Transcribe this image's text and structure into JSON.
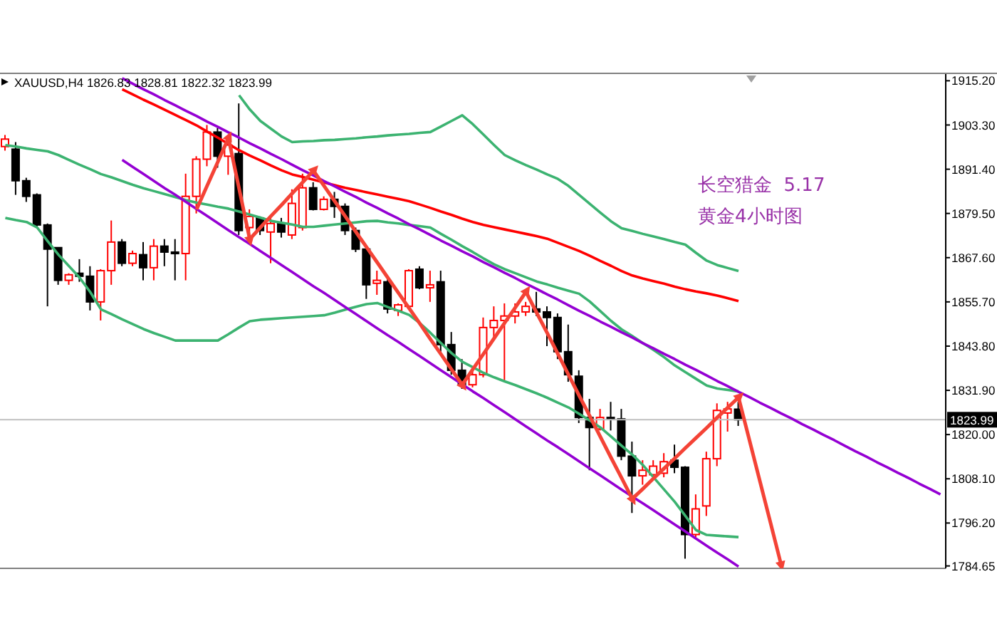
{
  "chart_data": {
    "type": "candlestick",
    "title": "XAUUSD,H4  1826.83 1828.81 1822.32 1823.99",
    "annotations": [
      "长空猎金  5.17",
      "黄金4小时图"
    ],
    "categories": [
      null,
      null,
      null,
      null,
      null,
      null,
      null,
      null,
      null,
      null,
      null,
      null,
      null,
      null,
      null,
      null,
      null,
      null,
      null,
      null,
      null,
      null,
      null,
      null,
      null,
      null,
      null,
      null,
      null,
      null,
      null,
      null,
      null,
      null,
      null,
      null,
      null,
      null,
      null,
      null,
      null,
      null,
      null,
      null,
      null,
      null,
      null,
      null,
      null,
      null,
      null,
      null,
      null,
      null,
      null,
      null,
      null,
      null,
      null,
      null,
      null,
      null,
      null,
      null,
      null,
      null,
      null,
      null,
      null,
      null,
      null,
      null,
      null,
      null,
      null,
      null,
      null,
      null,
      null,
      null,
      null,
      null,
      null,
      null,
      null,
      null,
      null,
      null,
      null
    ],
    "ohlc": [
      [
        1897.5,
        1900.6,
        1896.4,
        1899.5
      ],
      [
        1896.8,
        1898.7,
        1884.5,
        1888.3
      ],
      [
        1888.3,
        1889.1,
        1882.6,
        1884.1
      ],
      [
        1884.5,
        1884.9,
        1875.7,
        1876.4
      ],
      [
        1876.4,
        1876.8,
        1854.5,
        1869.9
      ],
      [
        1870.3,
        1870.3,
        1860.3,
        1861.5
      ],
      [
        1861.5,
        1863.4,
        1860.3,
        1863.0
      ],
      [
        1863.4,
        1867.2,
        1861.1,
        1862.6
      ],
      [
        1862.6,
        1865.3,
        1853.4,
        1855.7
      ],
      [
        1855.7,
        1864.5,
        1850.7,
        1864.1
      ],
      [
        1864.1,
        1877.6,
        1860.3,
        1871.8
      ],
      [
        1871.8,
        1872.6,
        1865.3,
        1866.1
      ],
      [
        1866.1,
        1869.5,
        1865.3,
        1868.7
      ],
      [
        1868.4,
        1871.8,
        1861.5,
        1864.9
      ],
      [
        1864.9,
        1872.6,
        1861.5,
        1870.7
      ],
      [
        1870.7,
        1872.6,
        1865.3,
        1869.1
      ],
      [
        1869.1,
        1872.6,
        1861.5,
        1868.7
      ],
      [
        1868.7,
        1890.2,
        1861.5,
        1884.1
      ],
      [
        1884.1,
        1894.9,
        1879.5,
        1894.1
      ],
      [
        1894.1,
        1903.3,
        1892.2,
        1901.4
      ],
      [
        1901.4,
        1902.5,
        1891.8,
        1894.9
      ],
      [
        1894.9,
        1899.8,
        1889.9,
        1897.9
      ],
      [
        1895.6,
        1909.1,
        1873.7,
        1874.9
      ],
      [
        1875.7,
        1880.6,
        1873.7,
        1878.7
      ],
      [
        1878.3,
        1878.7,
        1873.7,
        1874.9
      ],
      [
        1874.5,
        1878.3,
        1866.1,
        1876.8
      ],
      [
        1876.8,
        1878.3,
        1873.0,
        1874.5
      ],
      [
        1873.7,
        1886.0,
        1872.6,
        1882.2
      ],
      [
        1875.7,
        1890.2,
        1874.9,
        1886.4
      ],
      [
        1886.4,
        1887.9,
        1880.3,
        1880.6
      ],
      [
        1880.6,
        1884.1,
        1880.3,
        1883.3
      ],
      [
        1883.3,
        1885.3,
        1878.3,
        1881.4
      ],
      [
        1881.4,
        1882.2,
        1873.7,
        1874.9
      ],
      [
        1874.9,
        1875.7,
        1869.1,
        1869.9
      ],
      [
        1869.9,
        1870.7,
        1856.5,
        1860.3
      ],
      [
        1860.7,
        1864.1,
        1857.6,
        1861.5
      ],
      [
        1861.1,
        1861.8,
        1852.6,
        1853.8
      ],
      [
        1853.4,
        1855.3,
        1851.9,
        1854.9
      ],
      [
        1854.5,
        1864.5,
        1853.8,
        1864.1
      ],
      [
        1864.5,
        1865.3,
        1859.1,
        1859.5
      ],
      [
        1859.5,
        1864.1,
        1855.7,
        1860.3
      ],
      [
        1861.1,
        1864.1,
        1842.3,
        1844.2
      ],
      [
        1844.2,
        1847.6,
        1836.1,
        1837.3
      ],
      [
        1837.3,
        1840.3,
        1832.3,
        1833.4
      ],
      [
        1833.4,
        1837.3,
        1832.7,
        1836.1
      ],
      [
        1836.1,
        1851.5,
        1835.4,
        1848.8
      ],
      [
        1848.8,
        1854.5,
        1846.1,
        1850.7
      ],
      [
        1850.7,
        1855.3,
        1834.6,
        1851.9
      ],
      [
        1851.9,
        1855.3,
        1849.9,
        1853.0
      ],
      [
        1853.0,
        1855.7,
        1851.9,
        1854.5
      ],
      [
        1853.8,
        1858.4,
        1851.9,
        1853.0
      ],
      [
        1853.0,
        1854.5,
        1843.8,
        1851.5
      ],
      [
        1851.5,
        1852.6,
        1840.3,
        1842.3
      ],
      [
        1842.3,
        1849.6,
        1834.2,
        1836.1
      ],
      [
        1835.7,
        1837.3,
        1823.1,
        1824.6
      ],
      [
        1824.6,
        1829.6,
        1810.4,
        1821.9
      ],
      [
        1821.5,
        1826.9,
        1821.1,
        1824.6
      ],
      [
        1824.6,
        1828.8,
        1821.1,
        1824.2
      ],
      [
        1824.2,
        1826.9,
        1813.1,
        1814.2
      ],
      [
        1814.2,
        1818.1,
        1798.9,
        1808.9
      ],
      [
        1808.9,
        1813.1,
        1806.5,
        1810.4
      ],
      [
        1809.2,
        1813.1,
        1808.5,
        1811.5
      ],
      [
        1809.6,
        1815.0,
        1808.5,
        1812.7
      ],
      [
        1813.1,
        1817.3,
        1809.6,
        1811.2
      ],
      [
        1811.2,
        1811.5,
        1786.6,
        1793.1
      ],
      [
        1793.1,
        1803.9,
        1792.4,
        1800.0
      ],
      [
        1800.8,
        1815.4,
        1798.1,
        1813.5
      ],
      [
        1813.5,
        1828.4,
        1811.5,
        1826.5
      ],
      [
        1825.8,
        1828.8,
        1820.8,
        1826.9
      ],
      [
        1826.83,
        1828.81,
        1822.32,
        1823.99
      ],
      null,
      null,
      null,
      null,
      null,
      null,
      null,
      null,
      null,
      null,
      null,
      null,
      null,
      null,
      null,
      null,
      null,
      null,
      null
    ],
    "colors": [
      "#ff0000",
      "#000000",
      "#000000",
      "#000000",
      "#000000",
      "#000000",
      "#ff0000",
      "#000000",
      "#000000",
      "#ff0000",
      "#ff0000",
      "#000000",
      "#ff0000",
      "#000000",
      "#ff0000",
      "#000000",
      "#000000",
      "#ff0000",
      "#ff0000",
      "#ff0000",
      "#000000",
      "#ff0000",
      "#000000",
      "#ff0000",
      "#000000",
      "#ff0000",
      "#000000",
      "#ff0000",
      "#ff0000",
      "#000000",
      "#ff0000",
      "#000000",
      "#000000",
      "#000000",
      "#000000",
      "#ff0000",
      "#000000",
      "#ff0000",
      "#ff0000",
      "#000000",
      "#ff0000",
      "#000000",
      "#000000",
      "#000000",
      "#ff0000",
      "#ff0000",
      "#ff0000",
      "#ff0000",
      "#ff0000",
      "#ff0000",
      "#000000",
      "#000000",
      "#000000",
      "#000000",
      "#000000",
      "#000000",
      "#ff0000",
      "#000000",
      "#000000",
      "#000000",
      "#ff0000",
      "#ff0000",
      "#ff0000",
      "#000000",
      "#000000",
      "#ff0000",
      "#ff0000",
      "#ff0000",
      "#ff0000",
      "#000000",
      null,
      null,
      null,
      null,
      null,
      null,
      null,
      null,
      null,
      null,
      null,
      null,
      null,
      null,
      null,
      null,
      null,
      null,
      null
    ],
    "series": [
      {
        "type": "line",
        "color": "#ff0000",
        "values": [
          null,
          null,
          null,
          null,
          null,
          null,
          null,
          null,
          null,
          null,
          null,
          1912.9,
          1911.5,
          1910.1,
          1908.8,
          1907.4,
          1906.0,
          1904.6,
          1903.2,
          1901.5,
          1899.9,
          1898.2,
          1896.5,
          1895.1,
          1893.8,
          1892.4,
          1891.1,
          1890.0,
          1889.3,
          1888.6,
          1887.8,
          1887.1,
          1886.4,
          1885.8,
          1885.2,
          1884.6,
          1884.0,
          1883.4,
          1882.8,
          1881.9,
          1881.0,
          1880.0,
          1879.1,
          1878.1,
          1877.2,
          1876.4,
          1875.8,
          1875.2,
          1874.6,
          1874.0,
          1873.4,
          1872.7,
          1871.6,
          1870.5,
          1869.4,
          1868.1,
          1866.7,
          1865.4,
          1864.0,
          1862.8,
          1862.0,
          1861.3,
          1860.6,
          1859.8,
          1859.1,
          1858.5,
          1858.0,
          1857.4,
          1856.7,
          1855.9,
          null,
          null,
          null,
          null,
          null,
          null,
          null,
          null,
          null,
          null,
          null,
          null,
          null,
          null,
          null,
          null,
          null,
          null,
          null
        ]
      },
      {
        "type": "line",
        "color": "#3cb371",
        "values": [
          null,
          null,
          null,
          null,
          null,
          null,
          null,
          null,
          null,
          null,
          null,
          null,
          null,
          null,
          null,
          null,
          null,
          null,
          null,
          null,
          null,
          null,
          1911.3,
          1907.5,
          1904.4,
          1902.3,
          1900.2,
          1898.7,
          1898.9,
          1899.0,
          1899.2,
          1899.3,
          1899.5,
          1899.7,
          1900.0,
          1900.2,
          1900.5,
          1900.7,
          1900.9,
          1901.2,
          1901.4,
          1902.9,
          1904.4,
          1905.9,
          1903.5,
          1900.7,
          1897.9,
          1895.2,
          1893.8,
          1892.5,
          1891.3,
          1890.0,
          1888.8,
          1886.9,
          1884.5,
          1882.1,
          1879.7,
          1877.4,
          1875.5,
          1874.8,
          1874.0,
          1873.3,
          1872.6,
          1871.8,
          1871.1,
          1868.9,
          1866.8,
          1865.6,
          1864.8,
          1864.0,
          null,
          null,
          null,
          null,
          null,
          null,
          null,
          null,
          null,
          null,
          null,
          null,
          null,
          null,
          null,
          null,
          null,
          null,
          null
        ]
      },
      {
        "type": "line",
        "color": "#3cb371",
        "values": [
          1897.9,
          1897.5,
          1897.0,
          1896.6,
          1896.2,
          1895.2,
          1893.9,
          1892.6,
          1891.4,
          1890.1,
          1889.2,
          1888.2,
          1887.2,
          1886.3,
          1885.5,
          1884.7,
          1883.9,
          1883.1,
          1882.4,
          1881.9,
          1881.3,
          1880.8,
          1880.0,
          1879.2,
          1878.4,
          1877.5,
          1877.0,
          1876.5,
          1875.9,
          1875.9,
          1876.2,
          1876.5,
          1876.8,
          1877.1,
          1877.4,
          1877.5,
          1877.1,
          1876.8,
          1876.4,
          1876.1,
          1875.7,
          1874.0,
          1872.4,
          1870.7,
          1869.1,
          1867.4,
          1865.8,
          1864.5,
          1863.4,
          1862.3,
          1861.2,
          1860.4,
          1859.5,
          1858.7,
          1857.9,
          1855.8,
          1853.2,
          1850.6,
          1848.3,
          1846.5,
          1844.6,
          1842.8,
          1840.8,
          1838.6,
          1836.8,
          1835.0,
          1833.2,
          1832.4,
          1832.0,
          1831.6,
          null,
          null,
          null,
          null,
          null,
          null,
          null,
          null,
          null,
          null,
          null,
          null,
          null,
          null,
          null,
          null,
          null,
          null,
          null
        ]
      },
      {
        "type": "line",
        "color": "#3cb371",
        "values": [
          1878.3,
          1877.7,
          1877.2,
          1875.7,
          1872.0,
          1868.4,
          1865.3,
          1862.2,
          1858.3,
          1853.7,
          1852.4,
          1851.0,
          1849.7,
          1848.4,
          1847.3,
          1846.3,
          1845.3,
          1845.3,
          1845.3,
          1845.3,
          1845.3,
          1847.0,
          1848.8,
          1850.5,
          1850.9,
          1851.1,
          1851.3,
          1851.5,
          1851.7,
          1851.9,
          1852.1,
          1852.8,
          1853.6,
          1854.4,
          1855.1,
          1855.4,
          1854.3,
          1853.3,
          1852.2,
          1850.0,
          1847.4,
          1844.6,
          1841.9,
          1839.6,
          1838.1,
          1836.6,
          1835.4,
          1834.3,
          1833.3,
          1832.2,
          1831.1,
          1829.9,
          1828.6,
          1827.3,
          1825.6,
          1823.8,
          1821.9,
          1819.5,
          1817.0,
          1814.6,
          1811.8,
          1808.5,
          1805.2,
          1801.9,
          1798.1,
          1794.3,
          1793.0,
          1792.8,
          1792.6,
          1792.4,
          null,
          null,
          null,
          null,
          null,
          null,
          null,
          null,
          null,
          null,
          null,
          null,
          null,
          null,
          null,
          null,
          null,
          null,
          null
        ]
      },
      {
        "type": "line",
        "color": "#9400d3",
        "values": [
          null,
          null,
          null,
          null,
          null,
          null,
          null,
          null,
          null,
          null,
          null,
          1915.9,
          1914.4,
          1912.9,
          1911.5,
          1910.0,
          1908.6,
          1907.1,
          1905.7,
          1904.2,
          1902.8,
          1901.3,
          1899.9,
          1898.4,
          1897.0,
          1895.5,
          1894.1,
          1892.6,
          1891.1,
          1889.7,
          1888.2,
          1886.8,
          1885.3,
          1883.9,
          1882.4,
          1881.0,
          1879.5,
          1878.1,
          1876.6,
          1875.2,
          1873.7,
          1872.2,
          1870.8,
          1869.3,
          1867.9,
          1866.4,
          1865.0,
          1863.5,
          1862.1,
          1860.6,
          1859.2,
          1857.7,
          1856.3,
          1854.8,
          1853.3,
          1851.9,
          1850.4,
          1849.0,
          1847.5,
          1846.1,
          1844.6,
          1843.2,
          1841.7,
          1840.3,
          1838.8,
          1837.4,
          1835.9,
          1834.4,
          1833.0,
          1831.5,
          1830.1,
          1828.6,
          1827.2,
          1825.7,
          1824.3,
          1822.8,
          1821.4,
          1819.9,
          1818.5,
          1817.0,
          1815.5,
          1814.1,
          1812.6,
          1811.2,
          1809.7,
          1808.3,
          1806.8,
          1805.4,
          1803.9
        ]
      },
      {
        "type": "line",
        "color": "#9400d3",
        "values": [
          null,
          null,
          null,
          null,
          null,
          null,
          null,
          null,
          null,
          null,
          null,
          1893.9,
          1892.0,
          1890.1,
          1888.2,
          1886.3,
          1884.5,
          1882.6,
          1880.7,
          1878.8,
          1876.9,
          1875.0,
          1873.1,
          1871.3,
          1869.4,
          1867.5,
          1865.6,
          1863.7,
          1861.8,
          1859.9,
          1858.1,
          1856.2,
          1854.3,
          1852.4,
          1850.5,
          1848.6,
          1846.7,
          1844.9,
          1843.0,
          1841.1,
          1839.2,
          1837.3,
          1835.4,
          1833.5,
          1831.6,
          1829.8,
          1827.9,
          1826.0,
          1824.1,
          1822.2,
          1820.3,
          1818.4,
          1816.6,
          1814.7,
          1812.8,
          1810.9,
          1809.0,
          1807.1,
          1805.2,
          1803.3,
          1801.5,
          1799.6,
          1797.7,
          1795.8,
          1793.9,
          1792.0,
          1790.1,
          1788.2,
          1786.4,
          1784.5,
          null,
          null,
          null,
          null,
          null,
          null,
          null,
          null,
          null,
          null,
          null,
          null,
          null,
          null,
          null,
          null,
          null,
          null,
          null
        ]
      },
      {
        "type": "line",
        "color": "#f44336",
        "values": [
          null,
          null,
          null,
          null,
          null,
          null,
          null,
          null,
          null,
          null,
          null,
          null,
          null,
          null,
          null,
          null,
          null,
          null,
          1880.6,
          1887.0,
          1893.4,
          1899.8,
          1886.2,
          1872.6,
          1875.7,
          1878.8,
          1881.8,
          1884.9,
          1887.9,
          1891.0,
          1886.9,
          1882.8,
          1878.7,
          1874.5,
          1870.4,
          1866.3,
          1862.2,
          1858.1,
          1854.0,
          1849.9,
          1845.7,
          1841.6,
          1837.5,
          1833.4,
          1837.6,
          1841.7,
          1845.9,
          1850.1,
          1854.2,
          1858.4,
          1852.8,
          1847.3,
          1841.7,
          1836.1,
          1830.5,
          1825.0,
          1819.4,
          1813.8,
          1808.3,
          1802.7,
          1805.4,
          1808.2,
          1810.9,
          1813.6,
          1816.4,
          1819.1,
          1821.8,
          1824.6,
          1827.3,
          1830.0,
          1818.8,
          1807.6,
          1796.4,
          1785.1,
          null,
          null,
          null,
          null,
          null,
          null,
          null,
          null,
          null,
          null,
          null,
          null,
          null,
          null,
          null
        ]
      }
    ],
    "ylim": [
      1784.0,
      1917.0
    ],
    "yticks": [
      {
        "value": 1915.2,
        "label": "1915.20"
      },
      {
        "value": 1903.3,
        "label": "1903.30"
      },
      {
        "value": 1891.4,
        "label": "1891.40"
      },
      {
        "value": 1879.5,
        "label": "1879.50"
      },
      {
        "value": 1867.6,
        "label": "1867.60"
      },
      {
        "value": 1855.7,
        "label": "1855.70"
      },
      {
        "value": 1843.8,
        "label": "1843.80"
      },
      {
        "value": 1831.9,
        "label": "1831.90"
      },
      {
        "value": 1820,
        "label": "1820.00"
      },
      {
        "value": 1808.1,
        "label": "1808.10"
      },
      {
        "value": 1796.2,
        "label": "1796.20"
      },
      {
        "value": 1784.65,
        "label": "1784.65"
      }
    ],
    "ref_lines": [
      {
        "axis": "y",
        "value": 1823.99,
        "label": "1823.99",
        "color": "#c0c0c0"
      }
    ],
    "tick_labels": "y",
    "marker": "none"
  }
}
